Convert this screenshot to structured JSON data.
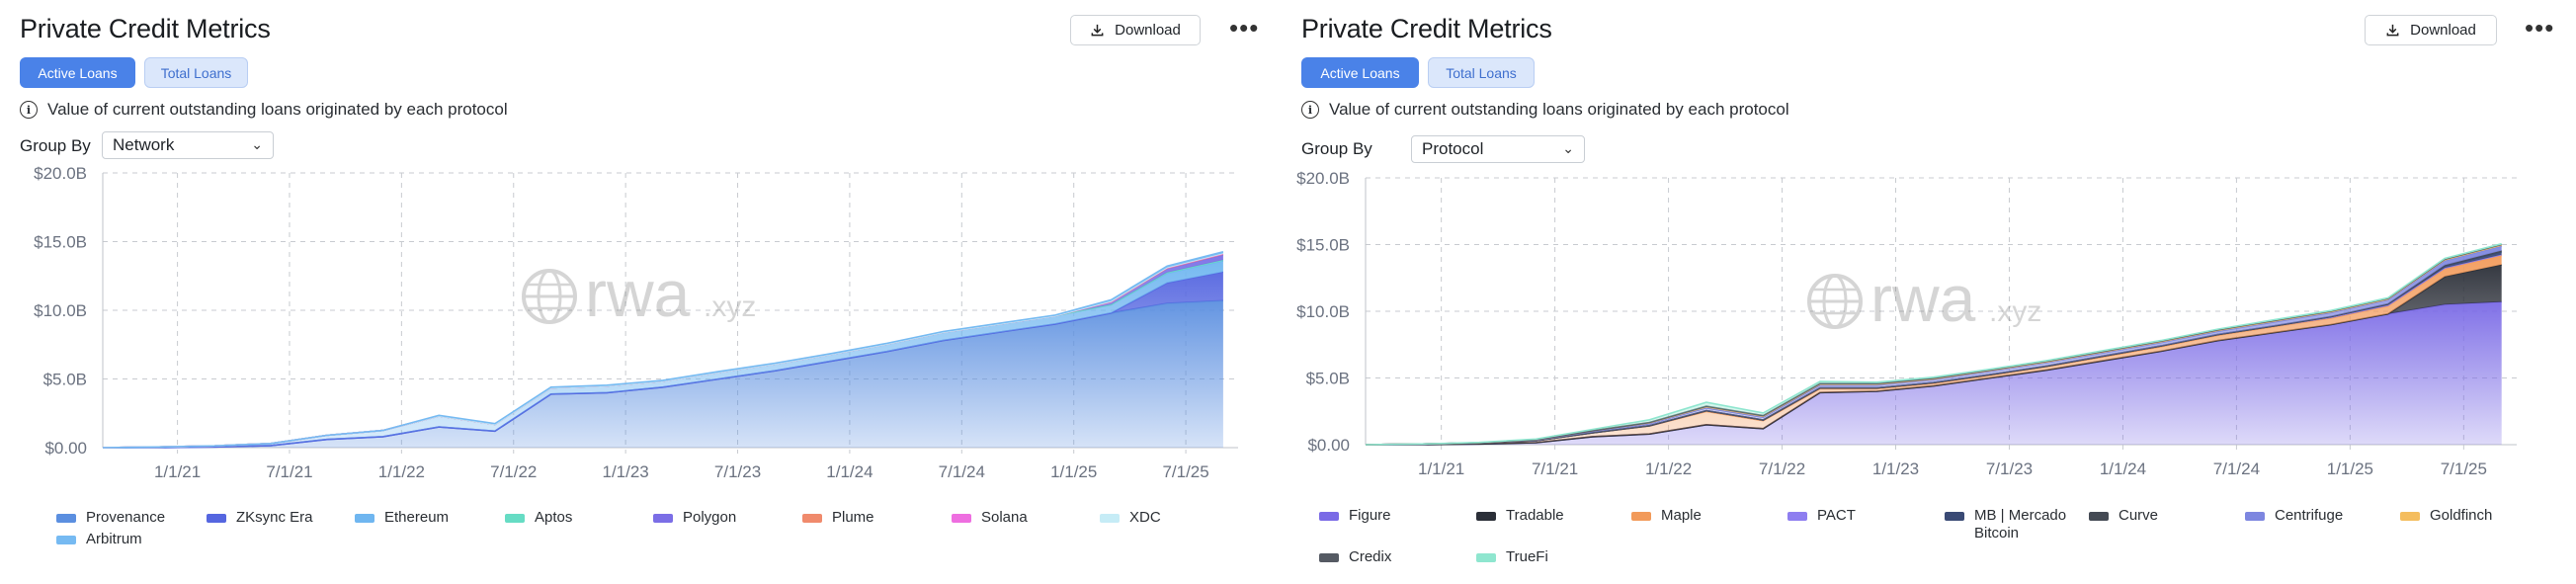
{
  "left": {
    "title": "Private Credit Metrics",
    "download_label": "Download",
    "more_label": "•••",
    "tabs": [
      {
        "label": "Active Loans",
        "active": true
      },
      {
        "label": "Total Loans",
        "active": false
      }
    ],
    "info_text": "Value of current outstanding loans originated by each protocol",
    "group_by_label": "Group By",
    "group_by_value": "Network",
    "watermark": "rwa",
    "watermark_suffix": ".xyz",
    "chart_data": {
      "type": "area",
      "stacked": true,
      "grid": true,
      "ylim": [
        0,
        20
      ],
      "y_ticks": [
        "$0.00",
        "$5.0B",
        "$10.0B",
        "$15.0B",
        "$20.0B"
      ],
      "x_ticks": [
        "1/1/21",
        "7/1/21",
        "1/1/22",
        "7/1/22",
        "1/1/23",
        "7/1/23",
        "1/1/24",
        "7/1/24",
        "1/1/25",
        "7/1/25"
      ],
      "x": [
        "2020-09",
        "2020-12",
        "2021-03",
        "2021-06",
        "2021-09",
        "2021-12",
        "2022-03",
        "2022-06",
        "2022-09",
        "2022-12",
        "2023-03",
        "2023-06",
        "2023-09",
        "2023-12",
        "2024-03",
        "2024-06",
        "2024-09",
        "2024-12",
        "2025-03",
        "2025-06",
        "2025-09"
      ],
      "series": [
        {
          "name": "Provenance",
          "color": "#5b8fe0",
          "values": [
            0,
            0,
            0.05,
            0.15,
            0.6,
            0.8,
            1.5,
            1.2,
            3.9,
            4.0,
            4.4,
            5.0,
            5.6,
            6.3,
            7.0,
            7.8,
            8.4,
            9.0,
            9.8,
            10.5,
            10.7
          ]
        },
        {
          "name": "ZKsync Era",
          "color": "#5566e0",
          "values": [
            0,
            0,
            0,
            0,
            0,
            0,
            0,
            0,
            0,
            0,
            0,
            0,
            0,
            0,
            0,
            0,
            0,
            0,
            0,
            1.5,
            2.1
          ]
        },
        {
          "name": "Ethereum",
          "color": "#6fb6f0",
          "values": [
            0,
            0.05,
            0.08,
            0.15,
            0.3,
            0.45,
            0.8,
            0.5,
            0.45,
            0.5,
            0.45,
            0.5,
            0.5,
            0.5,
            0.55,
            0.6,
            0.6,
            0.6,
            0.6,
            0.7,
            0.8
          ]
        },
        {
          "name": "Aptos",
          "color": "#66dcc4",
          "values": [
            0,
            0,
            0,
            0,
            0,
            0,
            0,
            0,
            0,
            0,
            0,
            0,
            0,
            0,
            0,
            0,
            0,
            0,
            0.02,
            0.05,
            0.06
          ]
        },
        {
          "name": "Polygon",
          "color": "#7b6ee6",
          "values": [
            0,
            0,
            0,
            0,
            0,
            0,
            0,
            0,
            0,
            0,
            0,
            0,
            0,
            0,
            0,
            0,
            0,
            0,
            0.2,
            0.3,
            0.4
          ]
        },
        {
          "name": "Plume",
          "color": "#f08a6c",
          "values": [
            0,
            0,
            0,
            0,
            0,
            0,
            0,
            0,
            0,
            0,
            0,
            0,
            0,
            0,
            0,
            0,
            0,
            0,
            0,
            0.02,
            0.03
          ]
        },
        {
          "name": "Solana",
          "color": "#ee6ee0",
          "values": [
            0,
            0,
            0,
            0,
            0,
            0,
            0,
            0,
            0,
            0,
            0,
            0,
            0,
            0,
            0,
            0,
            0,
            0,
            0.02,
            0.02,
            0.03
          ]
        },
        {
          "name": "XDC",
          "color": "#c6ecf6",
          "values": [
            0,
            0,
            0,
            0,
            0,
            0,
            0,
            0,
            0,
            0,
            0,
            0,
            0,
            0,
            0,
            0,
            0,
            0,
            0.02,
            0.03,
            0.04
          ]
        },
        {
          "name": "Arbitrum",
          "color": "#76baf2",
          "values": [
            0,
            0,
            0,
            0,
            0,
            0,
            0.05,
            0.05,
            0.05,
            0.05,
            0.05,
            0.05,
            0.05,
            0.05,
            0.05,
            0.05,
            0.05,
            0.05,
            0.1,
            0.1,
            0.1
          ]
        }
      ]
    }
  },
  "right": {
    "title": "Private Credit Metrics",
    "download_label": "Download",
    "more_label": "•••",
    "tabs": [
      {
        "label": "Active Loans",
        "active": true
      },
      {
        "label": "Total Loans",
        "active": false
      }
    ],
    "info_text": "Value of current outstanding loans originated by each protocol",
    "group_by_label": "Group By",
    "group_by_value": "Protocol",
    "watermark": "rwa",
    "watermark_suffix": ".xyz",
    "chart_data": {
      "type": "area",
      "stacked": true,
      "grid": true,
      "ylim": [
        0,
        20
      ],
      "y_ticks": [
        "$0.00",
        "$5.0B",
        "$10.0B",
        "$15.0B",
        "$20.0B"
      ],
      "x_ticks": [
        "1/1/21",
        "7/1/21",
        "1/1/22",
        "7/1/22",
        "1/1/23",
        "7/1/23",
        "1/1/24",
        "7/1/24",
        "1/1/25",
        "7/1/25"
      ],
      "x": [
        "2020-09",
        "2020-12",
        "2021-03",
        "2021-06",
        "2021-09",
        "2021-12",
        "2022-03",
        "2022-06",
        "2022-09",
        "2022-12",
        "2023-03",
        "2023-06",
        "2023-09",
        "2023-12",
        "2024-03",
        "2024-06",
        "2024-09",
        "2024-12",
        "2025-03",
        "2025-06",
        "2025-09"
      ],
      "series": [
        {
          "name": "Figure",
          "color": "#7a6ae6",
          "values": [
            0,
            0,
            0.05,
            0.15,
            0.6,
            0.8,
            1.5,
            1.2,
            3.9,
            4.0,
            4.4,
            5.0,
            5.6,
            6.3,
            7.0,
            7.8,
            8.4,
            9.0,
            9.8,
            10.5,
            10.7
          ]
        },
        {
          "name": "Tradable",
          "color": "#2b2f38",
          "values": [
            0,
            0,
            0,
            0,
            0,
            0,
            0,
            0,
            0,
            0,
            0,
            0,
            0,
            0,
            0,
            0,
            0,
            0,
            0,
            2.1,
            2.8
          ]
        },
        {
          "name": "Maple",
          "color": "#f29a5a",
          "values": [
            0,
            0.05,
            0.08,
            0.15,
            0.3,
            0.6,
            1.0,
            0.6,
            0.3,
            0.2,
            0.2,
            0.2,
            0.25,
            0.3,
            0.35,
            0.4,
            0.45,
            0.5,
            0.6,
            0.6,
            0.7
          ]
        },
        {
          "name": "PACT",
          "color": "#8e7ef0",
          "values": [
            0,
            0,
            0,
            0,
            0,
            0.02,
            0.05,
            0.05,
            0.05,
            0.05,
            0.05,
            0.05,
            0.05,
            0.05,
            0.05,
            0.05,
            0.05,
            0.05,
            0.05,
            0.05,
            0.05
          ]
        },
        {
          "name": "MB | Mercado Bitcoin",
          "color": "#3a4a75",
          "values": [
            0,
            0,
            0,
            0,
            0,
            0,
            0,
            0,
            0,
            0,
            0,
            0,
            0,
            0,
            0,
            0,
            0,
            0.05,
            0.1,
            0.15,
            0.2
          ]
        },
        {
          "name": "Curve",
          "color": "#444a54",
          "values": [
            0,
            0,
            0,
            0,
            0,
            0,
            0,
            0,
            0,
            0,
            0,
            0,
            0,
            0,
            0,
            0,
            0,
            0,
            0,
            0.05,
            0.1
          ]
        },
        {
          "name": "Centrifuge",
          "color": "#7d86e0",
          "values": [
            0,
            0,
            0.02,
            0.05,
            0.1,
            0.15,
            0.2,
            0.2,
            0.2,
            0.2,
            0.2,
            0.25,
            0.25,
            0.25,
            0.25,
            0.25,
            0.3,
            0.3,
            0.3,
            0.35,
            0.35
          ]
        },
        {
          "name": "Goldfinch",
          "color": "#f4bd5e",
          "values": [
            0,
            0,
            0,
            0.02,
            0.05,
            0.08,
            0.1,
            0.1,
            0.1,
            0.1,
            0.1,
            0.08,
            0.08,
            0.08,
            0.08,
            0.08,
            0.08,
            0.08,
            0.08,
            0.08,
            0.08
          ]
        },
        {
          "name": "Credix",
          "color": "#555a63",
          "values": [
            0,
            0,
            0,
            0,
            0,
            0.02,
            0.03,
            0.03,
            0.03,
            0.03,
            0.03,
            0.03,
            0.03,
            0.03,
            0.03,
            0.03,
            0.03,
            0.03,
            0.03,
            0.03,
            0.03
          ]
        },
        {
          "name": "TrueFi",
          "color": "#8fe6cf",
          "values": [
            0,
            0,
            0.02,
            0.05,
            0.1,
            0.2,
            0.3,
            0.2,
            0.15,
            0.1,
            0.08,
            0.05,
            0.05,
            0.05,
            0.05,
            0.05,
            0.05,
            0.05,
            0.05,
            0.05,
            0.05
          ]
        }
      ]
    }
  }
}
